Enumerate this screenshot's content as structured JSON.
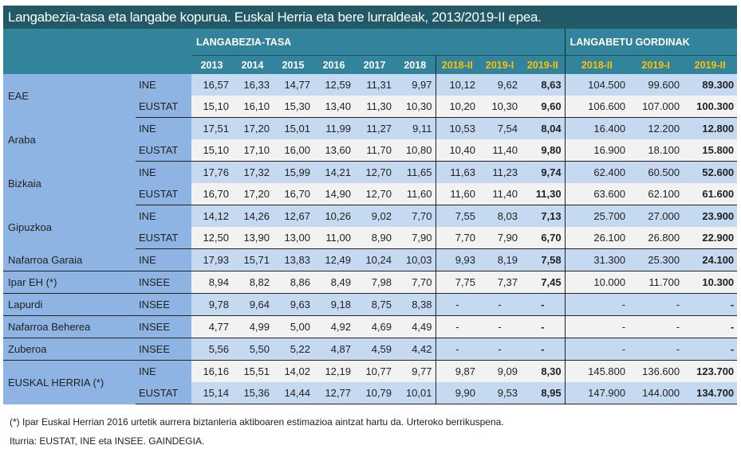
{
  "title": "Langabezia-tasa eta langabe kopurua. Euskal Herria eta bere lurraldeak, 2013/2019-II epea.",
  "sections": {
    "rate": "LANGABEZIA-TASA",
    "count": "LANGABETU GORDINAK"
  },
  "columns": {
    "years": [
      "2013",
      "2014",
      "2015",
      "2016",
      "2017",
      "2018"
    ],
    "rate_quarters": [
      "2018-II",
      "2019-I",
      "2019-II"
    ],
    "count_quarters": [
      "2018-II",
      "2019-I",
      "2019-II"
    ]
  },
  "colors": {
    "title_bg": "#215967",
    "header_bg": "#31849b",
    "quarter_text": "#ffc000",
    "label_bg": "#8db4e2",
    "row_blue": "#c5d9f1",
    "row_gray": "#f2f2f2"
  },
  "groups": [
    {
      "region": "EAE",
      "rows": [
        {
          "source": "INE",
          "years": [
            "16,57",
            "16,33",
            "14,77",
            "12,59",
            "11,31",
            "9,97"
          ],
          "rate_q": [
            "10,12",
            "9,62",
            "8,63"
          ],
          "count_q": [
            "104.500",
            "99.600",
            "89.300"
          ]
        },
        {
          "source": "EUSTAT",
          "years": [
            "15,10",
            "16,10",
            "15,30",
            "13,40",
            "11,30",
            "10,30"
          ],
          "rate_q": [
            "10,20",
            "10,30",
            "9,60"
          ],
          "count_q": [
            "106.600",
            "107.000",
            "100.300"
          ]
        }
      ]
    },
    {
      "region": "Araba",
      "rows": [
        {
          "source": "INE",
          "years": [
            "17,51",
            "17,20",
            "15,01",
            "11,99",
            "11,27",
            "9,11"
          ],
          "rate_q": [
            "10,53",
            "7,54",
            "8,04"
          ],
          "count_q": [
            "16.400",
            "12.200",
            "12.800"
          ]
        },
        {
          "source": "EUSTAT",
          "years": [
            "15,10",
            "17,10",
            "16,00",
            "13,60",
            "11,70",
            "10,80"
          ],
          "rate_q": [
            "10,40",
            "11,40",
            "9,80"
          ],
          "count_q": [
            "16.900",
            "18.100",
            "15.800"
          ]
        }
      ]
    },
    {
      "region": "Bizkaia",
      "rows": [
        {
          "source": "INE",
          "years": [
            "17,76",
            "17,32",
            "15,99",
            "14,21",
            "12,70",
            "11,65"
          ],
          "rate_q": [
            "11,63",
            "11,23",
            "9,74"
          ],
          "count_q": [
            "62.400",
            "60.500",
            "52.600"
          ]
        },
        {
          "source": "EUSTAT",
          "years": [
            "16,70",
            "17,20",
            "16,70",
            "14,90",
            "12,70",
            "11,60"
          ],
          "rate_q": [
            "11,60",
            "11,40",
            "11,30"
          ],
          "count_q": [
            "63.600",
            "62.100",
            "61.600"
          ]
        }
      ]
    },
    {
      "region": "Gipuzkoa",
      "rows": [
        {
          "source": "INE",
          "years": [
            "14,12",
            "14,26",
            "12,67",
            "10,26",
            "9,02",
            "7,70"
          ],
          "rate_q": [
            "7,55",
            "8,03",
            "7,13"
          ],
          "count_q": [
            "25.700",
            "27.000",
            "23.900"
          ]
        },
        {
          "source": "EUSTAT",
          "years": [
            "12,50",
            "13,90",
            "13,00",
            "11,00",
            "8,90",
            "7,90"
          ],
          "rate_q": [
            "7,70",
            "7,90",
            "6,70"
          ],
          "count_q": [
            "26.100",
            "26.800",
            "22.900"
          ]
        }
      ]
    },
    {
      "region": "Nafarroa Garaia",
      "rows": [
        {
          "source": "INE",
          "years": [
            "17,93",
            "15,71",
            "13,83",
            "12,49",
            "10,24",
            "10,03"
          ],
          "rate_q": [
            "9,93",
            "8,19",
            "7,58"
          ],
          "count_q": [
            "31.300",
            "25.300",
            "24.100"
          ]
        }
      ]
    },
    {
      "region": "Ipar EH (*)",
      "rows": [
        {
          "source": "INSEE",
          "years": [
            "8,94",
            "8,82",
            "8,86",
            "8,49",
            "7,98",
            "7,70"
          ],
          "rate_q": [
            "7,75",
            "7,37",
            "7,45"
          ],
          "count_q": [
            "10.000",
            "11.700",
            "10.300"
          ]
        }
      ]
    },
    {
      "region": "Lapurdi",
      "rows": [
        {
          "source": "INSEE",
          "years": [
            "9,78",
            "9,64",
            "9,63",
            "9,18",
            "8,75",
            "8,38"
          ],
          "rate_q": [
            "-",
            "-",
            "-"
          ],
          "count_q": [
            "-",
            "-",
            "-"
          ]
        }
      ]
    },
    {
      "region": "Nafarroa Beherea",
      "rows": [
        {
          "source": "INSEE",
          "years": [
            "4,77",
            "4,99",
            "5,00",
            "4,92",
            "4,69",
            "4,49"
          ],
          "rate_q": [
            "-",
            "-",
            "-"
          ],
          "count_q": [
            "-",
            "-",
            "-"
          ]
        }
      ]
    },
    {
      "region": "Zuberoa",
      "rows": [
        {
          "source": "INSEE",
          "years": [
            "5,56",
            "5,50",
            "5,22",
            "4,87",
            "4,59",
            "4,42"
          ],
          "rate_q": [
            "-",
            "-",
            "-"
          ],
          "count_q": [
            "-",
            "-",
            "-"
          ]
        }
      ]
    },
    {
      "region": "EUSKAL HERRIA (*)",
      "rows": [
        {
          "source": "INE",
          "years": [
            "16,16",
            "15,51",
            "14,02",
            "12,19",
            "10,77",
            "9,77"
          ],
          "rate_q": [
            "9,87",
            "9,09",
            "8,30"
          ],
          "count_q": [
            "145.800",
            "136.600",
            "123.700"
          ]
        },
        {
          "source": "EUSTAT",
          "years": [
            "15,14",
            "15,36",
            "14,44",
            "12,77",
            "10,79",
            "10,01"
          ],
          "rate_q": [
            "9,90",
            "9,53",
            "8,95"
          ],
          "count_q": [
            "147.900",
            "144.000",
            "134.700"
          ]
        }
      ]
    }
  ],
  "footnote": "(*) Ipar Euskal Herrian 2016 urtetik aurrera biztanleria aktiboaren estimazioa aintzat hartu da. Urteroko berrikuspena.",
  "source": "Iturria: EUSTAT, INE eta INSEE. GAINDEGIA."
}
